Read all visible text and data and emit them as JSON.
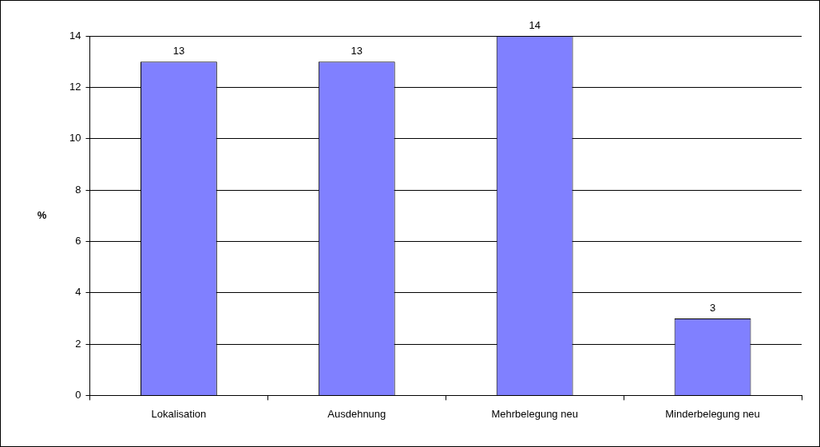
{
  "chart_data": {
    "type": "bar",
    "ylabel": "%",
    "categories": [
      "Lokalisation",
      "Ausdehnung",
      "Mehrbelegung neu",
      "Minderbelegung neu"
    ],
    "values": [
      13,
      13,
      14,
      3
    ],
    "color": "#8080ff",
    "ylim": [
      0,
      14
    ],
    "yticks": [
      0,
      2,
      4,
      6,
      8,
      10,
      12,
      14
    ],
    "grid": "y",
    "data_labels": true
  }
}
